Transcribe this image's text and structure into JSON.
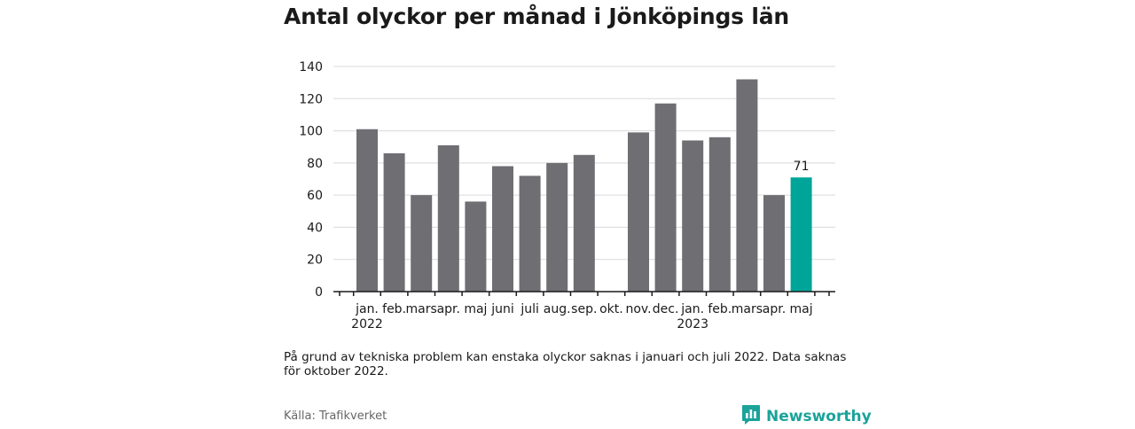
{
  "title": "Antal olyckor per månad i Jönköpings län",
  "note": "På grund av tekniska problem kan enstaka olyckor saknas i januari och juli 2022. Data saknas för oktober 2022.",
  "source": "Källa: Trafikverket",
  "brand": {
    "name": "Newsworthy",
    "icon": "newsworthy-logo-icon",
    "color": "#1aa39a"
  },
  "chart_data": {
    "type": "bar",
    "categories": [
      "jan.",
      "feb.",
      "mars",
      "apr.",
      "maj",
      "juni",
      "juli",
      "aug.",
      "sep.",
      "okt.",
      "nov.",
      "dec.",
      "jan.",
      "feb.",
      "mars",
      "apr.",
      "maj"
    ],
    "years": [
      {
        "label": "2022",
        "index": 0
      },
      {
        "label": "2023",
        "index": 12
      }
    ],
    "values": [
      101,
      86,
      60,
      91,
      56,
      78,
      72,
      80,
      85,
      null,
      99,
      117,
      94,
      96,
      132,
      60,
      71
    ],
    "highlight_index": 16,
    "data_labels": [
      {
        "index": 16,
        "text": "71"
      }
    ],
    "colors": {
      "bar": "#6e6e73",
      "highlight": "#00a59a",
      "grid": "#d9d9d9",
      "axis": "#1a1a1a"
    },
    "yticks": [
      0,
      20,
      40,
      60,
      80,
      100,
      120,
      140
    ],
    "ylim": [
      0,
      140
    ],
    "xlabel": "",
    "ylabel": "",
    "grid": true,
    "legend": "none"
  }
}
